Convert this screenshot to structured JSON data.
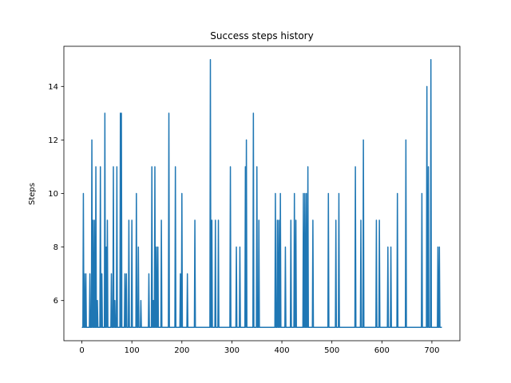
{
  "chart_data": {
    "type": "line",
    "title": "Success steps history",
    "xlabel": "",
    "ylabel": "Steps",
    "xlim": [
      -36,
      756
    ],
    "ylim": [
      4.5,
      15.5
    ],
    "x_ticks": [
      0,
      100,
      200,
      300,
      400,
      500,
      600,
      700
    ],
    "y_ticks": [
      6,
      8,
      10,
      12,
      14
    ],
    "grid": false,
    "line_color": "#1f77b4",
    "series": [
      {
        "x_start": 0,
        "x_step": 1,
        "values": [
          5,
          5,
          5,
          10,
          5,
          7,
          5,
          5,
          7,
          5,
          5,
          5,
          5,
          5,
          5,
          5,
          7,
          5,
          5,
          5,
          12,
          5,
          9,
          5,
          5,
          9,
          5,
          5,
          11,
          5,
          5,
          6,
          5,
          5,
          5,
          5,
          5,
          11,
          5,
          5,
          7,
          5,
          5,
          5,
          5,
          5,
          13,
          5,
          5,
          8,
          5,
          9,
          5,
          5,
          5,
          5,
          5,
          5,
          5,
          7,
          5,
          5,
          5,
          11,
          5,
          5,
          6,
          5,
          5,
          5,
          11,
          5,
          5,
          5,
          5,
          5,
          5,
          13,
          5,
          13,
          5,
          5,
          5,
          5,
          5,
          5,
          7,
          5,
          5,
          7,
          5,
          5,
          5,
          5,
          9,
          5,
          5,
          5,
          5,
          5,
          9,
          5,
          5,
          5,
          5,
          5,
          5,
          5,
          5,
          10,
          5,
          5,
          5,
          8,
          5,
          5,
          5,
          5,
          6,
          5,
          5,
          5,
          5,
          5,
          5,
          5,
          5,
          5,
          5,
          5,
          5,
          5,
          5,
          5,
          7,
          5,
          5,
          5,
          5,
          5,
          11,
          5,
          5,
          6,
          5,
          5,
          11,
          5,
          5,
          8,
          5,
          5,
          8,
          5,
          5,
          5,
          5,
          5,
          5,
          9,
          5,
          5,
          5,
          5,
          5,
          5,
          5,
          5,
          5,
          5,
          5,
          5,
          5,
          5,
          13,
          5,
          5,
          5,
          5,
          5,
          5,
          5,
          5,
          5,
          5,
          5,
          5,
          11,
          5,
          5,
          5,
          5,
          5,
          5,
          5,
          5,
          5,
          7,
          5,
          5,
          10,
          5,
          5,
          5,
          5,
          5,
          5,
          5,
          5,
          5,
          5,
          7,
          5,
          5,
          5,
          5,
          5,
          5,
          5,
          5,
          5,
          5,
          5,
          5,
          5,
          5,
          9,
          5,
          5,
          5,
          5,
          5,
          5,
          5,
          5,
          5,
          5,
          5,
          5,
          5,
          5,
          5,
          5,
          5,
          5,
          5,
          5,
          5,
          5,
          5,
          5,
          5,
          5,
          5,
          5,
          5,
          5,
          15,
          5,
          5,
          9,
          5,
          5,
          5,
          5,
          5,
          5,
          9,
          5,
          5,
          5,
          5,
          5,
          9,
          5,
          5,
          5,
          5,
          5,
          5,
          5,
          5,
          5,
          5,
          5,
          5,
          5,
          5,
          5,
          5,
          5,
          5,
          5,
          5,
          5,
          5,
          5,
          11,
          5,
          5,
          5,
          5,
          5,
          5,
          5,
          5,
          5,
          5,
          5,
          8,
          5,
          5,
          5,
          5,
          5,
          5,
          8,
          5,
          5,
          5,
          5,
          5,
          5,
          5,
          5,
          5,
          5,
          11,
          5,
          12,
          5,
          5,
          5,
          5,
          5,
          5,
          5,
          5,
          5,
          5,
          5,
          5,
          5,
          13,
          5,
          5,
          5,
          5,
          5,
          5,
          11,
          5,
          5,
          5,
          9,
          5,
          5,
          5,
          5,
          5,
          5,
          5,
          5,
          5,
          5,
          5,
          5,
          5,
          5,
          5,
          5,
          5,
          5,
          5,
          5,
          5,
          5,
          5,
          5,
          5,
          5,
          5,
          5,
          5,
          5,
          5,
          5,
          10,
          5,
          5,
          5,
          9,
          5,
          5,
          9,
          5,
          5,
          10,
          5,
          5,
          5,
          5,
          5,
          5,
          5,
          5,
          5,
          8,
          5,
          5,
          5,
          5,
          5,
          5,
          5,
          5,
          5,
          5,
          9,
          5,
          5,
          5,
          5,
          5,
          5,
          10,
          5,
          5,
          9,
          5,
          5,
          5,
          5,
          5,
          5,
          5,
          5,
          5,
          5,
          5,
          5,
          5,
          5,
          10,
          5,
          5,
          10,
          5,
          5,
          10,
          5,
          5,
          11,
          5,
          5,
          5,
          5,
          5,
          5,
          5,
          5,
          5,
          9,
          5,
          5,
          5,
          5,
          5,
          5,
          5,
          5,
          5,
          5,
          5,
          5,
          5,
          5,
          5,
          5,
          5,
          5,
          5,
          5,
          5,
          5,
          5,
          5,
          5,
          5,
          5,
          5,
          5,
          5,
          10,
          5,
          5,
          5,
          5,
          5,
          5,
          5,
          5,
          5,
          5,
          5,
          5,
          5,
          5,
          9,
          5,
          5,
          5,
          5,
          5,
          10,
          5,
          5,
          5,
          5,
          5,
          5,
          5,
          5,
          5,
          5,
          5,
          5,
          5,
          5,
          5,
          5,
          5,
          5,
          5,
          5,
          5,
          5,
          5,
          5,
          5,
          5,
          5,
          5,
          5,
          5,
          5,
          5,
          11,
          5,
          5,
          5,
          5,
          5,
          5,
          5,
          5,
          5,
          5,
          9,
          5,
          5,
          5,
          5,
          12,
          5,
          5,
          5,
          5,
          5,
          5,
          5,
          5,
          5,
          5,
          5,
          5,
          5,
          5,
          5,
          5,
          5,
          5,
          5,
          5,
          5,
          5,
          5,
          5,
          5,
          9,
          5,
          5,
          5,
          5,
          5,
          9,
          5,
          5,
          5,
          5,
          5,
          5,
          5,
          5,
          5,
          5,
          5,
          5,
          5,
          5,
          5,
          5,
          8,
          5,
          5,
          5,
          5,
          5,
          8,
          5,
          5,
          5,
          5,
          5,
          5,
          5,
          5,
          5,
          5,
          5,
          5,
          10,
          5,
          5,
          5,
          5,
          5,
          5,
          5,
          5,
          5,
          5,
          5,
          5,
          5,
          5,
          5,
          5,
          12,
          5,
          5,
          5,
          5,
          5,
          5,
          5,
          5,
          5,
          5,
          5,
          5,
          5,
          5,
          5,
          5,
          5,
          5,
          5,
          5,
          5,
          5,
          5,
          5,
          5,
          5,
          5,
          5,
          5,
          5,
          5,
          10,
          5,
          5,
          5,
          5,
          5,
          5,
          5,
          5,
          5,
          14,
          5,
          5,
          11,
          5,
          5,
          5,
          5,
          15,
          5,
          5,
          5,
          5,
          5,
          5,
          5,
          5,
          5,
          5,
          5,
          5,
          5,
          8,
          5,
          5,
          8,
          5,
          5,
          5,
          5,
          5
        ]
      }
    ]
  }
}
